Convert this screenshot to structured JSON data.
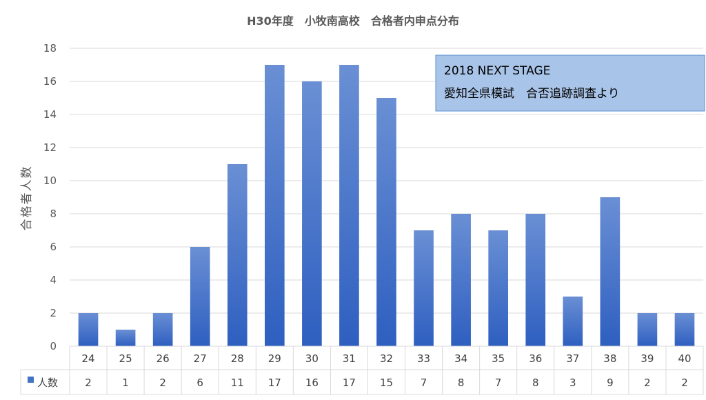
{
  "chart_data": {
    "type": "bar",
    "title": "H30年度　小牧南高校　合格者内申点分布",
    "xlabel": "",
    "ylabel": "合格者人数",
    "ylim": [
      0,
      18
    ],
    "yticks": [
      0,
      2,
      4,
      6,
      8,
      10,
      12,
      14,
      16,
      18
    ],
    "grid": true,
    "categories": [
      "24",
      "25",
      "26",
      "27",
      "28",
      "29",
      "30",
      "31",
      "32",
      "33",
      "34",
      "35",
      "36",
      "37",
      "38",
      "39",
      "40"
    ],
    "series": [
      {
        "name": "人数",
        "values": [
          2,
          1,
          2,
          6,
          11,
          17,
          16,
          17,
          15,
          7,
          8,
          7,
          8,
          3,
          9,
          2,
          2
        ],
        "color": "#4472c4"
      }
    ],
    "data_table": true,
    "legend": "data-table"
  },
  "annotation": {
    "line1": "2018 NEXT STAGE",
    "line2": "愛知全県模試　合否追跡調査より",
    "fill": "#a9c4e9",
    "border": "#5b8fd0"
  }
}
